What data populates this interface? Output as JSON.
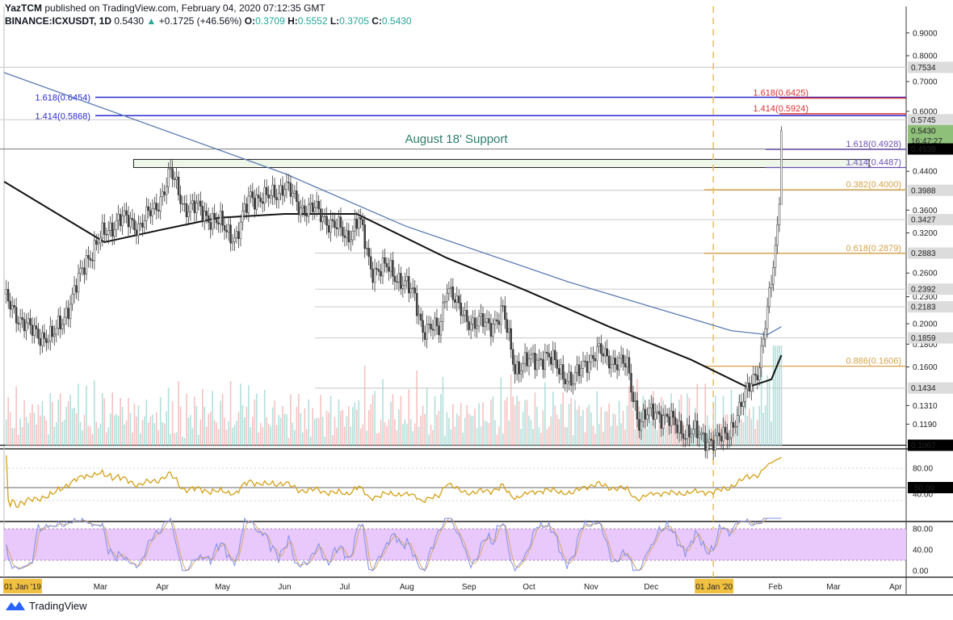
{
  "header": {
    "author": "YazTCM",
    "published": "published on TradingView.com, February 04, 2020 07:12:35 GMT",
    "symbol": "BINANCE:ICXUSDT, 1D",
    "last": "0.5430",
    "change": "+0.1725 (+46.56%)",
    "o_label": "O:",
    "o": "0.3709",
    "h_label": "H:",
    "h": "0.5552",
    "l_label": "L:",
    "l": "0.3705",
    "c_label": "C:",
    "c": "0.5430"
  },
  "brand": "TradingView",
  "colors": {
    "up": "#26a69a",
    "down": "#ef5350",
    "candle": "#3c3c3c",
    "ma_fast": "#111111",
    "ma_slow": "#5b7bb4",
    "rsi": "#d4a017",
    "stoch_k": "#7e8fe6",
    "stoch_d": "#d4a76a",
    "stoch_band": "#e9c8fb",
    "fib_blue": "#2a2ad0",
    "fib_red": "#d93030",
    "fib_purple": "#6a4fb0",
    "fib_gold": "#d4a24a",
    "support_text": "#2e7d6a"
  },
  "chart_data": {
    "type": "candlestick",
    "y_scale": "log",
    "y_range": [
      0.1067,
      0.9
    ],
    "y_ticks": [
      "0.9000",
      "0.8000",
      "0.7000",
      "0.6000",
      "0.4400",
      "0.3600",
      "0.3200",
      "0.2600",
      "0.2300",
      "0.2000",
      "0.1800",
      "0.1600",
      "0.1310",
      "0.1190"
    ],
    "x_ticks": [
      {
        "label": "01 Jan '19",
        "date": "2019-01-01",
        "highlight": true
      },
      {
        "label": "Feb",
        "date": "2019-02-01"
      },
      {
        "label": "Mar",
        "date": "2019-03-01"
      },
      {
        "label": "Apr",
        "date": "2019-04-01"
      },
      {
        "label": "May",
        "date": "2019-05-01"
      },
      {
        "label": "Jun",
        "date": "2019-06-01"
      },
      {
        "label": "Jul",
        "date": "2019-07-01"
      },
      {
        "label": "Aug",
        "date": "2019-08-01"
      },
      {
        "label": "Sep",
        "date": "2019-09-01"
      },
      {
        "label": "Oct",
        "date": "2019-10-01"
      },
      {
        "label": "Nov",
        "date": "2019-11-01"
      },
      {
        "label": "Dec",
        "date": "2019-12-01"
      },
      {
        "label": "01 Jan '20",
        "date": "2020-01-01",
        "highlight": true
      },
      {
        "label": "Feb",
        "date": "2020-02-01"
      },
      {
        "label": "Mar",
        "date": "2020-03-01"
      },
      {
        "label": "Apr",
        "date": "2020-04-01"
      }
    ],
    "close_series": [
      [
        "2019-01-12",
        0.228
      ],
      [
        "2019-01-25",
        0.193
      ],
      [
        "2019-02-05",
        0.185
      ],
      [
        "2019-02-15",
        0.228
      ],
      [
        "2019-02-22",
        0.28
      ],
      [
        "2019-03-03",
        0.318
      ],
      [
        "2019-03-10",
        0.345
      ],
      [
        "2019-03-20",
        0.333
      ],
      [
        "2019-03-28",
        0.36
      ],
      [
        "2019-04-05",
        0.435
      ],
      [
        "2019-04-12",
        0.368
      ],
      [
        "2019-04-20",
        0.36
      ],
      [
        "2019-04-28",
        0.338
      ],
      [
        "2019-05-08",
        0.313
      ],
      [
        "2019-05-15",
        0.39
      ],
      [
        "2019-05-23",
        0.38
      ],
      [
        "2019-06-01",
        0.41
      ],
      [
        "2019-06-08",
        0.368
      ],
      [
        "2019-06-16",
        0.36
      ],
      [
        "2019-06-24",
        0.338
      ],
      [
        "2019-07-02",
        0.313
      ],
      [
        "2019-07-08",
        0.345
      ],
      [
        "2019-07-14",
        0.266
      ],
      [
        "2019-07-22",
        0.266
      ],
      [
        "2019-07-30",
        0.25
      ],
      [
        "2019-08-05",
        0.228
      ],
      [
        "2019-08-09",
        0.196
      ],
      [
        "2019-08-17",
        0.193
      ],
      [
        "2019-08-21",
        0.247
      ],
      [
        "2019-08-27",
        0.214
      ],
      [
        "2019-09-04",
        0.2
      ],
      [
        "2019-09-12",
        0.2
      ],
      [
        "2019-09-18",
        0.212
      ],
      [
        "2019-09-24",
        0.16
      ],
      [
        "2019-10-03",
        0.165
      ],
      [
        "2019-10-09",
        0.17
      ],
      [
        "2019-10-17",
        0.157
      ],
      [
        "2019-10-23",
        0.147
      ],
      [
        "2019-10-29",
        0.165
      ],
      [
        "2019-11-05",
        0.172
      ],
      [
        "2019-11-13",
        0.165
      ],
      [
        "2019-11-19",
        0.16
      ],
      [
        "2019-11-25",
        0.12
      ],
      [
        "2019-12-03",
        0.128
      ],
      [
        "2019-12-11",
        0.12
      ],
      [
        "2019-12-19",
        0.114
      ],
      [
        "2019-12-27",
        0.112
      ],
      [
        "2020-01-02",
        0.108
      ],
      [
        "2020-01-08",
        0.114
      ],
      [
        "2020-01-14",
        0.126
      ],
      [
        "2020-01-20",
        0.151
      ],
      [
        "2020-01-24",
        0.16
      ],
      [
        "2020-01-28",
        0.21
      ],
      [
        "2020-02-01",
        0.3
      ],
      [
        "2020-02-03",
        0.371
      ],
      [
        "2020-02-04",
        0.543
      ]
    ],
    "last_candle": {
      "open": 0.3709,
      "high": 0.5552,
      "low": 0.3705,
      "close": 0.543
    },
    "ma_fast": [
      [
        "2019-01-12",
        0.417
      ],
      [
        "2019-03-03",
        0.305
      ],
      [
        "2019-03-31",
        0.325
      ],
      [
        "2019-04-29",
        0.346
      ],
      [
        "2019-06-01",
        0.353
      ],
      [
        "2019-07-07",
        0.353
      ],
      [
        "2019-08-21",
        0.281
      ],
      [
        "2019-09-30",
        0.237
      ],
      [
        "2019-11-10",
        0.197
      ],
      [
        "2019-12-21",
        0.166
      ],
      [
        "2020-01-18",
        0.144
      ],
      [
        "2020-01-30",
        0.15
      ],
      [
        "2020-02-04",
        0.17
      ]
    ],
    "ma_slow": [
      [
        "2019-01-12",
        0.733
      ],
      [
        "2019-06-01",
        0.435
      ],
      [
        "2019-07-31",
        0.332
      ],
      [
        "2019-10-21",
        0.248
      ],
      [
        "2020-01-10",
        0.193
      ],
      [
        "2020-01-28",
        0.189
      ],
      [
        "2020-02-04",
        0.197
      ]
    ],
    "price_labels": [
      {
        "value": 0.7534,
        "text": "0.7534",
        "style": "grey"
      },
      {
        "value": 0.5745,
        "text": "0.5745",
        "style": "grey"
      },
      {
        "value": 0.543,
        "text": "0.5430",
        "style": "green"
      },
      {
        "value": 0.515,
        "text": "16:47:27",
        "style": "green"
      },
      {
        "value": 0.4939,
        "text": "0.4939",
        "style": "black"
      },
      {
        "value": 0.3988,
        "text": "0.3988",
        "style": "grey"
      },
      {
        "value": 0.3427,
        "text": "0.3427",
        "style": "grey"
      },
      {
        "value": 0.2883,
        "text": "0.2883",
        "style": "grey"
      },
      {
        "value": 0.2392,
        "text": "0.2392",
        "style": "grey"
      },
      {
        "value": 0.2183,
        "text": "0.2183",
        "style": "grey"
      },
      {
        "value": 0.1859,
        "text": "0.1859",
        "style": "grey"
      },
      {
        "value": 0.1434,
        "text": "0.1434",
        "style": "grey"
      },
      {
        "value": 0.1067,
        "text": "0.1067",
        "style": "black"
      }
    ],
    "fib_levels": [
      {
        "text": "1.618(0.6454)",
        "value": 0.6454,
        "color": "fib_blue",
        "side": "left"
      },
      {
        "text": "1.414(0.5868)",
        "value": 0.5868,
        "color": "fib_blue",
        "side": "left"
      },
      {
        "text": "1.618(0.6425)",
        "value": 0.6425,
        "color": "fib_red",
        "side": "right-top"
      },
      {
        "text": "1.414(0.5924)",
        "value": 0.5924,
        "color": "fib_red",
        "side": "right-top"
      },
      {
        "text": "1.618(0.4928)",
        "value": 0.4928,
        "color": "fib_purple",
        "side": "right"
      },
      {
        "text": "1.414(0.4487)",
        "value": 0.4487,
        "color": "fib_purple",
        "side": "right"
      },
      {
        "text": "0.382(0.4000)",
        "value": 0.4,
        "color": "fib_gold",
        "side": "right"
      },
      {
        "text": "0.618(0.2879)",
        "value": 0.2879,
        "color": "fib_gold",
        "side": "right"
      },
      {
        "text": "0.886(0.1606)",
        "value": 0.1606,
        "color": "fib_gold",
        "side": "right"
      }
    ],
    "support_zone": {
      "low": 0.4487,
      "high": 0.468,
      "from": "2019-03-20"
    },
    "annotation": "August 18' Support",
    "marker_date": "2020-01-01",
    "rsi": {
      "ticks": [
        "80.00",
        "50.00",
        "40.00"
      ],
      "level_label": "50.00",
      "levels": [
        80,
        50,
        30
      ]
    },
    "stoch_rsi": {
      "ticks": [
        "80.00",
        "40.00",
        "0.00"
      ],
      "band": [
        20,
        80
      ]
    }
  }
}
